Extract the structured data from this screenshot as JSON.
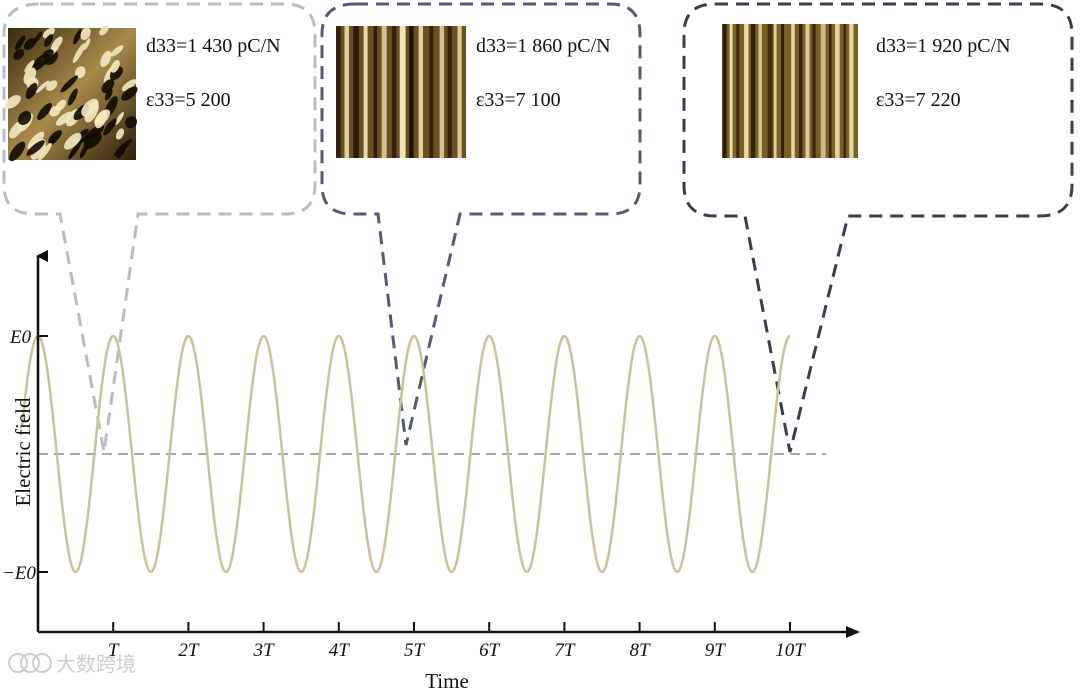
{
  "chart_data": {
    "type": "line",
    "title": "",
    "xlabel": "Time",
    "ylabel": "Electric field",
    "x_ticks": [
      "T",
      "2T",
      "3T",
      "4T",
      "5T",
      "6T",
      "7T",
      "8T",
      "9T",
      "10T"
    ],
    "y_ticks": [
      "E0",
      "−E0"
    ],
    "xlim": [
      0,
      10.5
    ],
    "ylim": [
      -1.6,
      1.6
    ],
    "grid": false,
    "series": [
      {
        "type": "sine",
        "amplitude": 1,
        "periods": 10,
        "color": "#c9c29a"
      }
    ],
    "zero_line": {
      "y": 0,
      "style": "dashed",
      "color": "#8a8a99"
    },
    "callouts": [
      {
        "label": "d33=1 430 pC/N",
        "label2": "ε33=5 200",
        "at_time": "T",
        "d33": 1430,
        "eps33": 5200,
        "border_color": "#b9bcc4",
        "image_style": "mixed domains"
      },
      {
        "label": "d33=1 860 pC/N",
        "label2": "ε33=7 100",
        "at_time": "5T",
        "d33": 1860,
        "eps33": 7100,
        "border_color": "#555a77",
        "image_style": "stripe domains"
      },
      {
        "label": "d33=1 920 pC/N",
        "label2": "ε33=7 220",
        "at_time": "10T",
        "d33": 1920,
        "eps33": 7220,
        "border_color": "#3a3e4e",
        "image_style": "fine stripe domains"
      }
    ]
  },
  "watermark": "大数跨境"
}
